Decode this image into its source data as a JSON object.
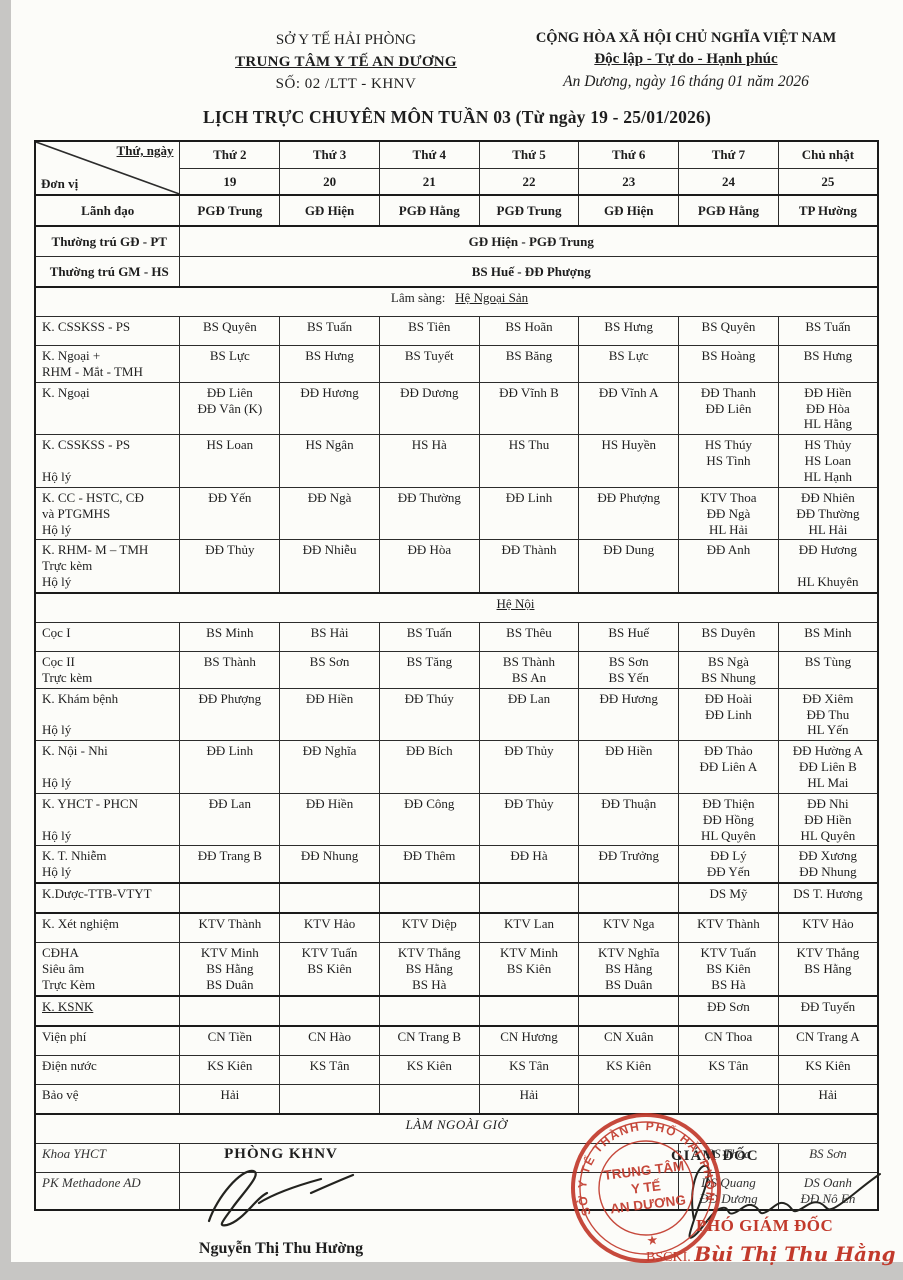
{
  "colors": {
    "stamp_red": "#c23a2c",
    "ink": "#1e1e1e",
    "border": "#2c2c2c"
  },
  "header": {
    "left": {
      "line1": "SỞ Y TẾ HẢI PHÒNG",
      "line2": "TRUNG TÂM Y TẾ AN DƯƠNG",
      "line3": "SỐ: 02 /LTT - KHNV"
    },
    "right": {
      "line1": "CỘNG HÒA XÃ HỘI CHỦ NGHĨA VIỆT NAM",
      "line2": "Độc lập - Tự do - Hạnh phúc",
      "line3": "An Dương, ngày 16 tháng 01 năm 2026"
    },
    "title": "LỊCH TRỰC CHUYÊN MÔN TUẦN 03 (Từ ngày 19 - 25/01/2026)"
  },
  "table": {
    "corner": {
      "top": "Thứ, ngày",
      "bottom": "Đơn vị"
    },
    "days": [
      "Thứ 2",
      "Thứ 3",
      "Thứ 4",
      "Thứ 5",
      "Thứ 6",
      "Thứ 7",
      "Chủ nhật"
    ],
    "dates": [
      "19",
      "20",
      "21",
      "22",
      "23",
      "24",
      "25"
    ],
    "leader": {
      "label": "Lãnh đạo",
      "cells": [
        "PGĐ Trung",
        "GĐ Hiện",
        "PGĐ Hằng",
        "PGĐ Trung",
        "GĐ Hiện",
        "PGĐ Hằng",
        "TP Hường"
      ]
    },
    "standby": [
      {
        "label": "Thường trú GĐ - PT",
        "value": "GĐ Hiện - PGĐ Trung"
      },
      {
        "label": "Thường trú GM - HS",
        "value": "BS Huế - ĐĐ Phượng"
      }
    ],
    "rows": [
      {
        "type": "section",
        "prefix": "Lâm sàng:",
        "underline": "Hệ Ngoại Sản",
        "thick": true
      },
      {
        "type": "data",
        "label": [
          "K. CSSKSS - PS"
        ],
        "cells": [
          "BS Quyên",
          "BS Tuấn",
          "BS Tiên",
          "BS Hoãn",
          "BS Hưng",
          "BS Quyên",
          "BS Tuấn"
        ]
      },
      {
        "type": "data",
        "label": [
          "K. Ngoại +",
          "RHM - Mắt - TMH"
        ],
        "cells": [
          "BS Lực",
          "BS Hưng",
          "BS Tuyết",
          "BS Băng",
          "BS Lực",
          "BS Hoàng",
          "BS Hưng"
        ]
      },
      {
        "type": "data",
        "label": [
          "K. Ngoại"
        ],
        "cells": [
          [
            "ĐĐ Liên",
            "ĐĐ Vân (K)"
          ],
          "ĐĐ Hương",
          "ĐĐ Dương",
          "ĐĐ Vĩnh B",
          "ĐĐ Vĩnh A",
          [
            "ĐĐ Thanh",
            "ĐĐ Liên"
          ],
          [
            "ĐĐ Hiền",
            "ĐĐ Hòa",
            "HL Hằng"
          ]
        ]
      },
      {
        "type": "data",
        "label": [
          "K. CSSKSS - PS"
        ],
        "label_bottom": "Hộ lý",
        "cells": [
          "HS Loan",
          "HS Ngân",
          "HS Hà",
          "HS Thu",
          "HS Huyền",
          [
            "HS Thúy",
            "HS Tình"
          ],
          [
            "HS Thủy",
            "HS Loan",
            "HL Hạnh"
          ]
        ]
      },
      {
        "type": "data",
        "label": [
          "K. CC - HSTC, CĐ",
          "và PTGMHS"
        ],
        "label_bottom": "Hộ lý",
        "cells": [
          "ĐĐ Yến",
          "ĐĐ Ngà",
          "ĐĐ Thường",
          "ĐĐ Linh",
          "ĐĐ Phượng",
          [
            "KTV Thoa",
            "ĐĐ Ngà",
            "HL Hải"
          ],
          [
            "ĐĐ Nhiên",
            "ĐĐ Thường",
            "HL Hải"
          ]
        ]
      },
      {
        "type": "data",
        "label": [
          "K. RHM- M – TMH",
          "Trực kèm"
        ],
        "label_bottom": "Hộ lý",
        "cells": [
          "ĐĐ Thủy",
          "ĐĐ Nhiễu",
          "ĐĐ Hòa",
          "ĐĐ Thành",
          "ĐĐ Dung",
          "ĐĐ Anh",
          [
            "ĐĐ Hương",
            "",
            "HL Khuyên"
          ]
        ]
      },
      {
        "type": "section",
        "underline": "Hệ Nội",
        "indent": true,
        "thick": true
      },
      {
        "type": "data",
        "label": [
          "Cọc I"
        ],
        "cells": [
          "BS Minh",
          "BS Hải",
          "BS Tuấn",
          "BS Thêu",
          "BS Huế",
          "BS Duyên",
          "BS Minh"
        ]
      },
      {
        "type": "data",
        "label": [
          "Cọc II",
          "Trực kèm"
        ],
        "cells": [
          "BS Thành",
          "BS Sơn",
          "BS Tăng",
          [
            "BS Thành",
            "BS An"
          ],
          [
            "BS Sơn",
            "BS Yến"
          ],
          [
            "BS Ngà",
            "BS Nhung"
          ],
          "BS Tùng"
        ]
      },
      {
        "type": "data",
        "label": [
          "K. Khám bệnh"
        ],
        "label_bottom": "Hộ lý",
        "cells": [
          "ĐĐ Phượng",
          "ĐĐ Hiền",
          "ĐĐ Thúy",
          "ĐĐ Lan",
          "ĐĐ Hương",
          [
            "ĐĐ Hoài",
            "ĐĐ Linh"
          ],
          [
            "ĐĐ Xiêm",
            "ĐĐ Thu",
            "HL Yến"
          ]
        ]
      },
      {
        "type": "data",
        "label": [
          "K. Nội - Nhi"
        ],
        "label_bottom": "Hộ lý",
        "cells": [
          "ĐĐ Linh",
          "ĐĐ Nghĩa",
          "ĐĐ Bích",
          "ĐĐ Thủy",
          "ĐĐ Hiền",
          [
            "ĐĐ Thảo",
            "ĐĐ Liên A"
          ],
          [
            "ĐĐ Hường A",
            "ĐĐ Liên B",
            "HL Mai"
          ]
        ]
      },
      {
        "type": "data",
        "label": [
          "K. YHCT - PHCN"
        ],
        "label_bottom": "Hộ lý",
        "cells": [
          "ĐĐ Lan",
          "ĐĐ Hiền",
          "ĐĐ Công",
          "ĐĐ Thủy",
          "ĐĐ Thuận",
          [
            "ĐĐ Thiện",
            "ĐĐ Hồng",
            "HL Quyên"
          ],
          [
            "ĐĐ Nhi",
            "ĐĐ Hiền",
            "HL Quyên"
          ]
        ]
      },
      {
        "type": "data",
        "label": [
          "K. T. Nhiễm"
        ],
        "label_bottom": "Hộ lý",
        "cells": [
          "ĐĐ Trang B",
          "ĐĐ Nhung",
          "ĐĐ Thêm",
          "ĐĐ Hà",
          "ĐĐ Trưởng",
          [
            "ĐĐ Lý",
            "ĐĐ Yến"
          ],
          [
            "ĐĐ Xương",
            "ĐĐ Nhung"
          ]
        ]
      },
      {
        "type": "data",
        "label": [
          "K.Dược-TTB-VTYT"
        ],
        "thick": true,
        "cells": [
          "",
          "",
          "",
          "",
          "",
          "DS Mỹ",
          "DS T. Hương"
        ]
      },
      {
        "type": "data",
        "label": [
          "K. Xét nghiệm"
        ],
        "thick": true,
        "cells": [
          "KTV Thành",
          "KTV Hảo",
          "KTV Diệp",
          "KTV Lan",
          "KTV Nga",
          "KTV Thành",
          "KTV Hảo"
        ]
      },
      {
        "type": "data",
        "label": [
          "CĐHA",
          "Siêu âm",
          "Trực Kèm"
        ],
        "cells": [
          [
            "KTV Minh",
            "BS Hằng",
            "BS Duân"
          ],
          [
            "KTV Tuấn",
            "BS Kiên"
          ],
          [
            "KTV Thắng",
            "BS Hằng",
            "BS Hà"
          ],
          [
            "KTV Minh",
            "BS Kiên"
          ],
          [
            "KTV Nghĩa",
            "BS Hằng",
            "BS Duân"
          ],
          [
            "KTV Tuấn",
            "BS Kiên",
            "BS Hà"
          ],
          [
            "KTV Thắng",
            "BS Hằng"
          ]
        ]
      },
      {
        "type": "data",
        "label": [
          "K. KSNK"
        ],
        "label_underline": true,
        "thick": true,
        "cells": [
          "",
          "",
          "",
          "",
          "",
          "ĐĐ Sơn",
          "ĐĐ Tuyến"
        ]
      },
      {
        "type": "data",
        "label": [
          "Viện phí"
        ],
        "thick": true,
        "cells": [
          "CN Tiền",
          "CN Hào",
          "CN Trang B",
          "CN Hương",
          "CN Xuân",
          "CN Thoa",
          "CN Trang A"
        ]
      },
      {
        "type": "data",
        "label": [
          "Điện nước"
        ],
        "light": true,
        "cells": [
          "KS Kiên",
          "KS Tân",
          "KS Kiên",
          "KS Tân",
          "KS Kiên",
          "KS Tân",
          "KS Kiên"
        ]
      },
      {
        "type": "data",
        "label": [
          "Bảo vệ"
        ],
        "light": true,
        "cells": [
          "Hải",
          "",
          "",
          "Hải",
          "",
          "",
          "Hải"
        ]
      },
      {
        "type": "center",
        "text": "LÀM NGOÀI GIỜ",
        "thick": true
      },
      {
        "type": "data",
        "label": [
          "Khoa YHCT"
        ],
        "italic": true,
        "merge": true,
        "cells": [
          "",
          "",
          "",
          "",
          "",
          "BS Thoa",
          "BS Sơn"
        ]
      },
      {
        "type": "data",
        "label": [
          "PK Methadone AD"
        ],
        "italic": true,
        "merge": true,
        "cells": [
          "",
          "",
          "",
          "",
          "",
          [
            "DS Quang",
            "ĐĐ Dương"
          ],
          [
            "DS Oanh",
            "ĐĐ Nô En"
          ]
        ]
      }
    ]
  },
  "footer": {
    "left": {
      "dept": "PHÒNG KHNV",
      "name": "Nguyễn Thị Thu Hường"
    },
    "right": {
      "title": "GIÁM ĐỐC",
      "deputy": "PHÓ GIÁM ĐỐC",
      "signer_prefix": "BSCKI.",
      "signer_name": "Bùi Thị Thu Hằng"
    },
    "stamp": {
      "ring": "SỞ Y TẾ THÀNH PHỐ HẢI PHÒNG",
      "center1": "TRUNG TÂM",
      "center2": "Y TẾ",
      "center3": "AN DƯƠNG",
      "star": "★"
    }
  }
}
